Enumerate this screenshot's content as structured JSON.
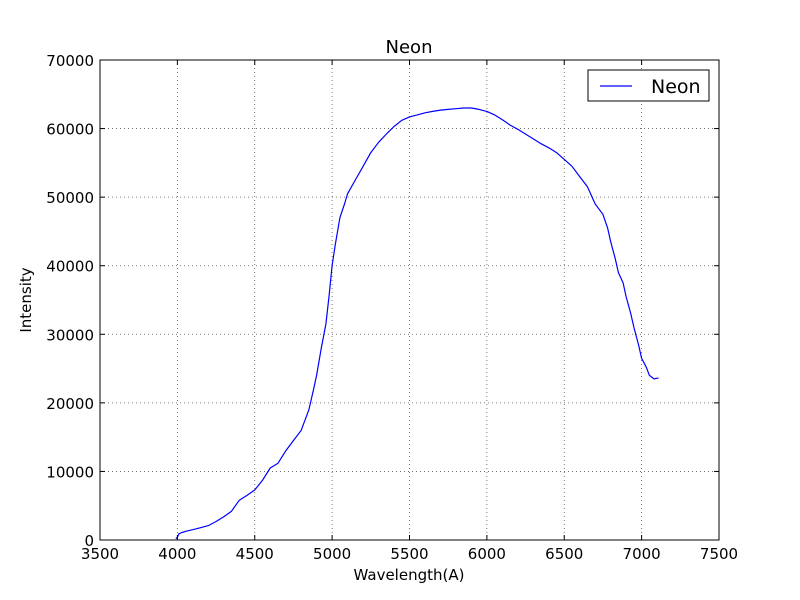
{
  "chart_data": {
    "type": "line",
    "title": "Neon",
    "xlabel": "Wavelength(A)",
    "ylabel": "Intensity",
    "xlim": [
      3500,
      7500
    ],
    "ylim": [
      0,
      70000
    ],
    "xticks": [
      3500,
      4000,
      4500,
      5000,
      5500,
      6000,
      6500,
      7000,
      7500
    ],
    "yticks": [
      0,
      10000,
      20000,
      30000,
      40000,
      50000,
      60000,
      70000
    ],
    "grid": true,
    "legend_position": "top-right",
    "series": [
      {
        "name": "Neon",
        "color": "#0000ff",
        "x": [
          3990,
          4000,
          4010,
          4030,
          4060,
          4100,
          4150,
          4200,
          4250,
          4300,
          4350,
          4400,
          4450,
          4500,
          4550,
          4600,
          4650,
          4700,
          4750,
          4800,
          4850,
          4880,
          4900,
          4930,
          4960,
          4980,
          5000,
          5020,
          5050,
          5080,
          5100,
          5150,
          5200,
          5250,
          5300,
          5350,
          5400,
          5450,
          5500,
          5550,
          5600,
          5650,
          5700,
          5750,
          5800,
          5850,
          5900,
          5950,
          6000,
          6050,
          6100,
          6150,
          6200,
          6250,
          6300,
          6350,
          6400,
          6450,
          6500,
          6550,
          6600,
          6650,
          6700,
          6750,
          6780,
          6800,
          6830,
          6850,
          6880,
          6900,
          6930,
          6950,
          6980,
          7000,
          7030,
          7050,
          7080,
          7100,
          7110
        ],
        "y": [
          200,
          400,
          900,
          1100,
          1300,
          1500,
          1800,
          2100,
          2700,
          3400,
          4200,
          5800,
          6500,
          7300,
          8700,
          10500,
          11200,
          13000,
          14500,
          16000,
          19000,
          22000,
          24000,
          28000,
          31500,
          35500,
          40000,
          43000,
          47000,
          49000,
          50500,
          52500,
          54500,
          56500,
          58000,
          59200,
          60300,
          61200,
          61700,
          62000,
          62300,
          62500,
          62700,
          62800,
          62900,
          63000,
          63000,
          62800,
          62500,
          62000,
          61300,
          60500,
          59900,
          59200,
          58500,
          57800,
          57200,
          56500,
          55500,
          54500,
          53000,
          51500,
          49000,
          47500,
          45500,
          43500,
          41000,
          39000,
          37500,
          35500,
          33000,
          31000,
          28500,
          26500,
          25200,
          24000,
          23500,
          23600,
          23600
        ]
      }
    ]
  }
}
